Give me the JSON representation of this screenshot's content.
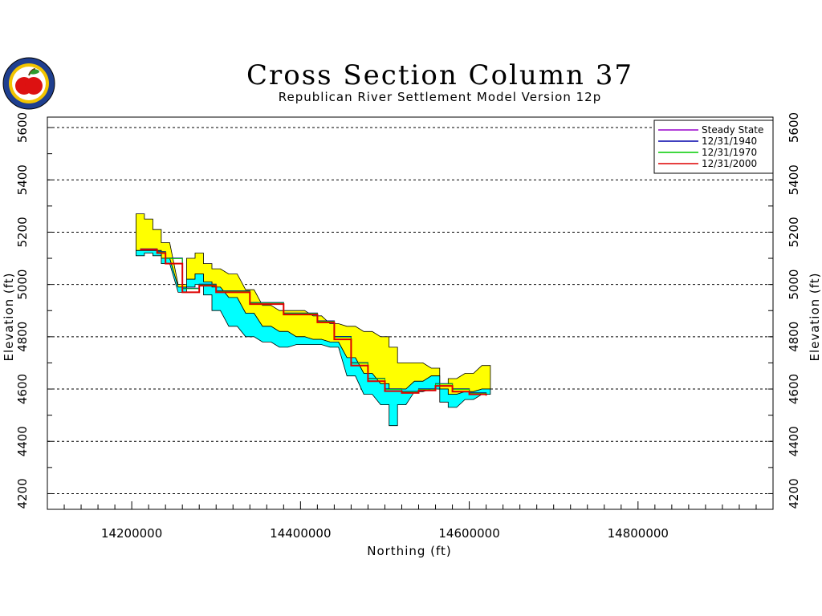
{
  "chart_data": {
    "type": "area",
    "title": "Cross Section Column 37",
    "subtitle": "Republican River Settlement Model Version 12p",
    "xlabel": "Northing (ft)",
    "ylabel": "Elevation (ft)",
    "xlim": [
      14100000,
      14960000
    ],
    "ylim": [
      4140000,
      5640000
    ],
    "y_unit_scale": 1000,
    "xticks": [
      14200000,
      14400000,
      14600000,
      14800000
    ],
    "xtick_labels": [
      "14200000",
      "14400000",
      "14600000",
      "14800000"
    ],
    "yticks": [
      4200,
      4400,
      4600,
      4800,
      5000,
      5200,
      5400,
      5600
    ],
    "ytick_labels": [
      "4200",
      "4400",
      "4600",
      "4800",
      "5000",
      "5200",
      "5400",
      "5600"
    ],
    "grid": true,
    "legend_position": "top-right",
    "colors": {
      "upper_band": "#ffff00",
      "lower_band": "#00ffff",
      "steady_state": "#9900cc",
      "y1940": "#0000aa",
      "y1970": "#00cc00",
      "y2000": "#dd0000"
    },
    "bands": [
      {
        "name": "upper",
        "x": [
          14210000,
          14220000,
          14230000,
          14240000,
          14260000,
          14270000,
          14280000,
          14290000,
          14300000,
          14320000,
          14340000,
          14360000,
          14380000,
          14400000,
          14420000,
          14440000,
          14460000,
          14480000,
          14500000,
          14510000,
          14520000,
          14540000,
          14560000,
          14570000,
          14580000,
          14600000,
          14620000
        ],
        "top": [
          5270,
          5250,
          5210,
          5160,
          5000,
          5100,
          5120,
          5080,
          5060,
          5040,
          4980,
          4920,
          4900,
          4900,
          4880,
          4850,
          4840,
          4820,
          4800,
          4760,
          4700,
          4700,
          4680,
          4620,
          4640,
          4660,
          4690
        ],
        "bottom": [
          5130,
          5130,
          5130,
          5100,
          4990,
          5020,
          5040,
          5010,
          4990,
          4950,
          4890,
          4840,
          4820,
          4800,
          4790,
          4780,
          4720,
          4660,
          4620,
          4600,
          4600,
          4630,
          4650,
          4600,
          4580,
          4590,
          4600
        ]
      },
      {
        "name": "lower",
        "x": [
          14210000,
          14220000,
          14230000,
          14240000,
          14260000,
          14270000,
          14280000,
          14290000,
          14300000,
          14320000,
          14340000,
          14360000,
          14380000,
          14400000,
          14420000,
          14440000,
          14460000,
          14480000,
          14500000,
          14510000,
          14520000,
          14540000,
          14560000,
          14570000,
          14580000,
          14600000,
          14620000
        ],
        "top": [
          5130,
          5130,
          5130,
          5100,
          4990,
          5020,
          5040,
          5010,
          4990,
          4950,
          4890,
          4840,
          4820,
          4800,
          4790,
          4780,
          4720,
          4660,
          4620,
          4600,
          4600,
          4630,
          4650,
          4600,
          4580,
          4590,
          4600
        ],
        "bottom": [
          5110,
          5120,
          5110,
          5080,
          4970,
          4990,
          5000,
          4960,
          4900,
          4840,
          4800,
          4780,
          4760,
          4770,
          4770,
          4760,
          4650,
          4580,
          4540,
          4460,
          4540,
          4590,
          4600,
          4550,
          4530,
          4560,
          4580
        ]
      }
    ],
    "series": [
      {
        "name": "Steady State",
        "x": [
          14210000,
          14230000,
          14240000,
          14260000,
          14280000,
          14300000,
          14340000,
          14380000,
          14420000,
          14440000,
          14460000,
          14480000,
          14500000,
          14520000,
          14540000,
          14560000,
          14580000,
          14600000,
          14620000
        ],
        "y": [
          5135,
          5125,
          5100,
          4985,
          5000,
          4975,
          4930,
          4890,
          4860,
          4800,
          4700,
          4640,
          4600,
          4590,
          4600,
          4620,
          4600,
          4585,
          4580
        ]
      },
      {
        "name": "12/31/1940",
        "x": [
          14210000,
          14230000,
          14240000,
          14260000,
          14280000,
          14300000,
          14340000,
          14380000,
          14420000,
          14440000,
          14460000,
          14480000,
          14500000,
          14520000,
          14540000,
          14560000,
          14580000,
          14600000,
          14620000
        ],
        "y": [
          5136,
          5126,
          5101,
          4986,
          5001,
          4976,
          4931,
          4891,
          4861,
          4801,
          4701,
          4641,
          4601,
          4591,
          4601,
          4621,
          4601,
          4586,
          4581
        ]
      },
      {
        "name": "12/31/1970",
        "x": [
          14210000,
          14230000,
          14240000,
          14260000,
          14280000,
          14300000,
          14340000,
          14380000,
          14420000,
          14440000,
          14460000,
          14480000,
          14500000,
          14520000,
          14540000,
          14560000,
          14580000,
          14600000,
          14620000
        ],
        "y": [
          5134,
          5124,
          5099,
          4984,
          4999,
          4974,
          4929,
          4889,
          4859,
          4799,
          4699,
          4639,
          4599,
          4589,
          4599,
          4619,
          4599,
          4584,
          4579
        ]
      },
      {
        "name": "12/31/2000",
        "x": [
          14210000,
          14230000,
          14240000,
          14260000,
          14280000,
          14300000,
          14340000,
          14380000,
          14420000,
          14440000,
          14460000,
          14480000,
          14500000,
          14520000,
          14540000,
          14560000,
          14580000,
          14600000,
          14620000
        ],
        "y": [
          5133,
          5120,
          5080,
          4970,
          4995,
          4970,
          4925,
          4885,
          4855,
          4790,
          4690,
          4630,
          4592,
          4585,
          4595,
          4612,
          4590,
          4580,
          4575
        ]
      }
    ]
  },
  "logo": {
    "icon": "apple-seal-icon"
  }
}
